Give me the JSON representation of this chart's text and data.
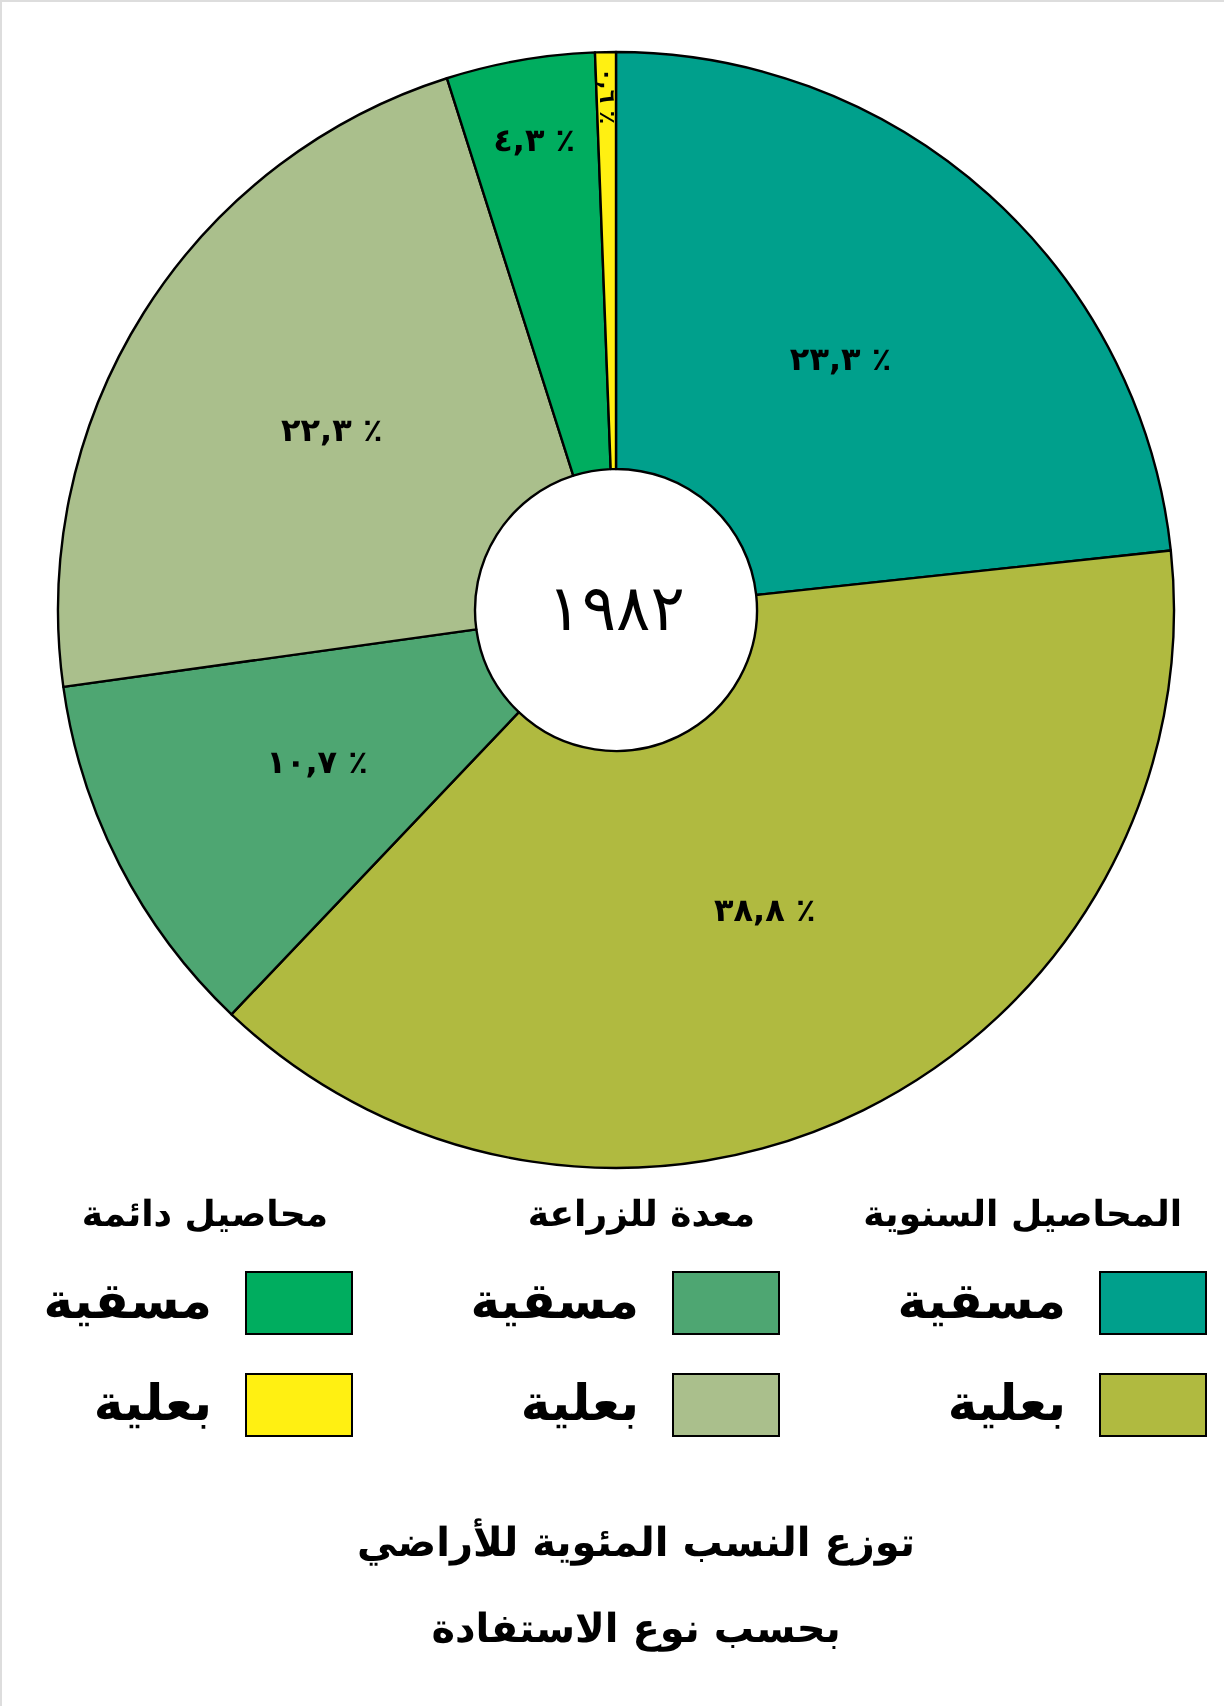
{
  "chart_data": {
    "type": "donut",
    "title": "توزع النسب المئوية للأراضي\nبحسب نوع الاستفادة",
    "categories": [
      "مسقية",
      "بعلية",
      "مسقية",
      "بعلية",
      "مسقية",
      "بعلية"
    ],
    "values": [
      23.3,
      38.8,
      10.7,
      22.3,
      4.3,
      0.6
    ],
    "colors": [
      "#00a08c",
      "#b0ba40",
      "#4ea672",
      "#aabf8c",
      "#00ad5f",
      "#fff012"
    ],
    "value_labels": [
      "٢٣,٣ ٪",
      "٣٨,٨ ٪",
      "١٠,٧ ٪",
      "٢٢,٣ ٪",
      "٤,٣ ٪",
      "٠,٦ ٪"
    ],
    "annotations": [
      "١٩٨٢",
      "المحاصيل السنوية",
      "معدة للزراعة",
      "محاصيل دائمة"
    ],
    "legend": "bottom"
  }
}
